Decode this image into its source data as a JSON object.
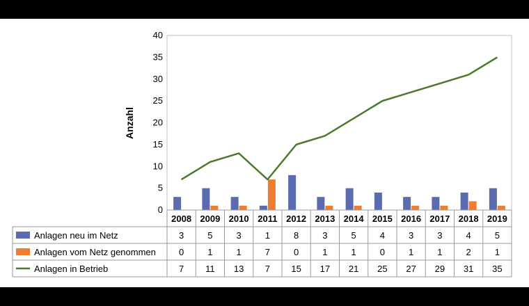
{
  "chart_data": {
    "type": "bar+line with data table",
    "ylabel": "Anzahl",
    "ylim": [
      0,
      40
    ],
    "yticks": [
      0,
      5,
      10,
      15,
      20,
      25,
      30,
      35,
      40
    ],
    "categories": [
      "2008",
      "2009",
      "2010",
      "2011",
      "2012",
      "2013",
      "2014",
      "2015",
      "2016",
      "2017",
      "2018",
      "2019"
    ],
    "series": [
      {
        "name": "Anlagen neu im Netz",
        "kind": "bar",
        "color": "#5b6bb0",
        "values": [
          3,
          5,
          3,
          1,
          8,
          3,
          5,
          4,
          3,
          3,
          4,
          5
        ]
      },
      {
        "name": "Anlagen vom Netz genommen",
        "kind": "bar",
        "color": "#ed7d31",
        "values": [
          0,
          1,
          1,
          7,
          0,
          1,
          1,
          0,
          1,
          1,
          2,
          1
        ]
      },
      {
        "name": "Anlagen in Betrieb",
        "kind": "line",
        "color": "#4a7a2c",
        "values": [
          7,
          11,
          13,
          7,
          15,
          17,
          21,
          25,
          27,
          29,
          31,
          35
        ]
      }
    ]
  }
}
